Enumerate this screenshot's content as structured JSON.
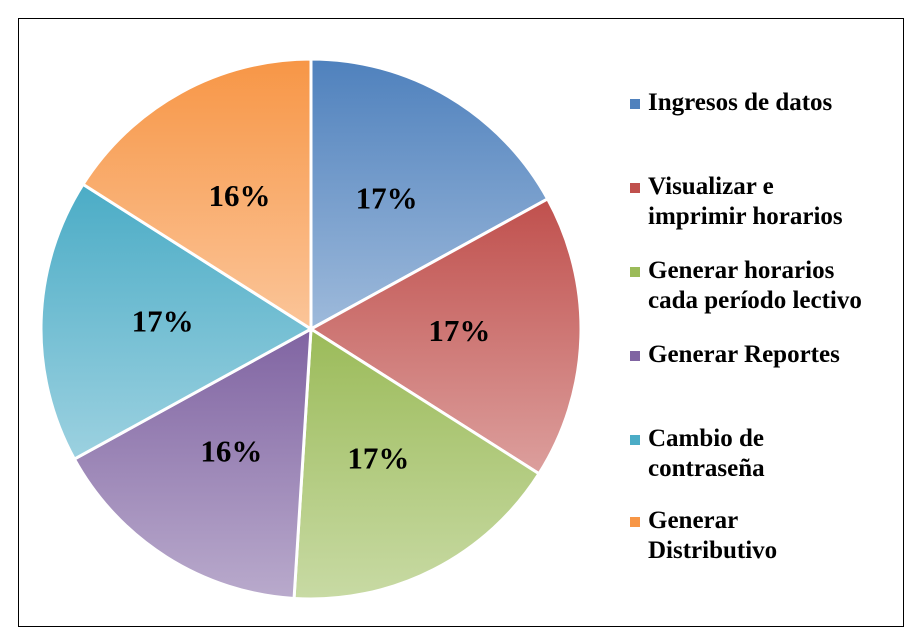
{
  "chart_data": {
    "type": "pie",
    "categories": [
      "Ingresos de datos",
      "Visualizar e\nimprimir horarios",
      "Generar horarios\ncada período lectivo",
      "Generar Reportes",
      "Cambio de\ncontraseña",
      "Generar\nDistributivo"
    ],
    "values": [
      17,
      17,
      17,
      16,
      17,
      16
    ],
    "value_labels": [
      "17%",
      "17%",
      "17%",
      "16%",
      "17%",
      "16%"
    ],
    "colors": [
      "#4f81bd",
      "#c0504d",
      "#9bbb59",
      "#8064a2",
      "#4bacc6",
      "#f79646"
    ],
    "legend": "right"
  }
}
